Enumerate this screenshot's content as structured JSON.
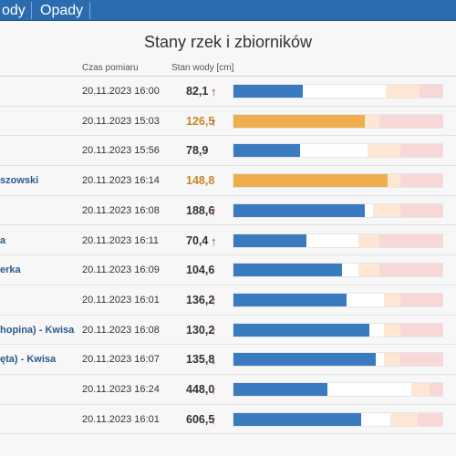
{
  "nav": {
    "tabs": [
      "ody",
      "Opady"
    ]
  },
  "page": {
    "title": "Stany rzek i zbiorników"
  },
  "table": {
    "headers": {
      "time": "Czas pomiaru",
      "level": "Stan wody [cm]"
    },
    "rows": [
      {
        "name": "",
        "time": "20.11.2023 16:00",
        "value": "82,1",
        "trend": "up",
        "trend_symbol": "↑",
        "level_fraction": 0.33,
        "warn_zone": [
          0.73,
          0.89
        ],
        "status": "normal"
      },
      {
        "name": "",
        "time": "20.11.2023 15:03",
        "value": "126,5",
        "trend": "up",
        "trend_symbol": "↑",
        "level_fraction": 0.63,
        "warn_zone": [
          0.63,
          0.7
        ],
        "status": "warning"
      },
      {
        "name": "",
        "time": "20.11.2023 15:56",
        "value": "78,9",
        "trend": "",
        "trend_symbol": "",
        "level_fraction": 0.32,
        "warn_zone": [
          0.64,
          0.8
        ],
        "status": "normal"
      },
      {
        "name": "szowski",
        "time": "20.11.2023 16:14",
        "value": "148,8",
        "trend": "",
        "trend_symbol": "",
        "level_fraction": 0.74,
        "warn_zone": [
          0.74,
          0.8
        ],
        "status": "warning"
      },
      {
        "name": "",
        "time": "20.11.2023 16:08",
        "value": "188,6",
        "trend": "up",
        "trend_symbol": "↑",
        "level_fraction": 0.63,
        "warn_zone": [
          0.67,
          0.8
        ],
        "status": "normal"
      },
      {
        "name": "a",
        "time": "20.11.2023 16:11",
        "value": "70,4",
        "trend": "up",
        "trend_symbol": "↑",
        "level_fraction": 0.35,
        "warn_zone": [
          0.6,
          0.7
        ],
        "status": "normal"
      },
      {
        "name": "erka",
        "time": "20.11.2023 16:09",
        "value": "104,6",
        "trend": "",
        "trend_symbol": "",
        "level_fraction": 0.52,
        "warn_zone": [
          0.6,
          0.7
        ],
        "status": "normal"
      },
      {
        "name": "",
        "time": "20.11.2023 16:01",
        "value": "136,2",
        "trend": "up",
        "trend_symbol": "↑",
        "level_fraction": 0.54,
        "warn_zone": [
          0.72,
          0.8
        ],
        "status": "normal"
      },
      {
        "name": "hopina) - Kwisa",
        "time": "20.11.2023 16:08",
        "value": "130,2",
        "trend": "up",
        "trend_symbol": "↑",
        "level_fraction": 0.65,
        "warn_zone": [
          0.72,
          0.8
        ],
        "status": "normal"
      },
      {
        "name": "ęta) - Kwisa",
        "time": "20.11.2023 16:07",
        "value": "135,8",
        "trend": "down",
        "trend_symbol": "↓",
        "level_fraction": 0.68,
        "warn_zone": [
          0.72,
          0.8
        ],
        "status": "normal"
      },
      {
        "name": "",
        "time": "20.11.2023 16:24",
        "value": "448,0",
        "trend": "up",
        "trend_symbol": "↑",
        "level_fraction": 0.45,
        "warn_zone": [
          0.85,
          0.94
        ],
        "status": "normal"
      },
      {
        "name": "",
        "time": "20.11.2023 16:01",
        "value": "606,5",
        "trend": "up",
        "trend_symbol": "↑",
        "level_fraction": 0.61,
        "warn_zone": [
          0.75,
          0.88
        ],
        "status": "normal"
      }
    ]
  },
  "colors": {
    "nav": "#2b6cb0",
    "bar_fill": "#3a7bc0",
    "bar_warning": "#f0ad4e",
    "warn_zone": "#fde7d4",
    "alarm_zone": "#f8d7d7",
    "trend_up": "#b03a2e",
    "trend_down": "#2e7d32",
    "station_link": "#2a5a8c"
  }
}
